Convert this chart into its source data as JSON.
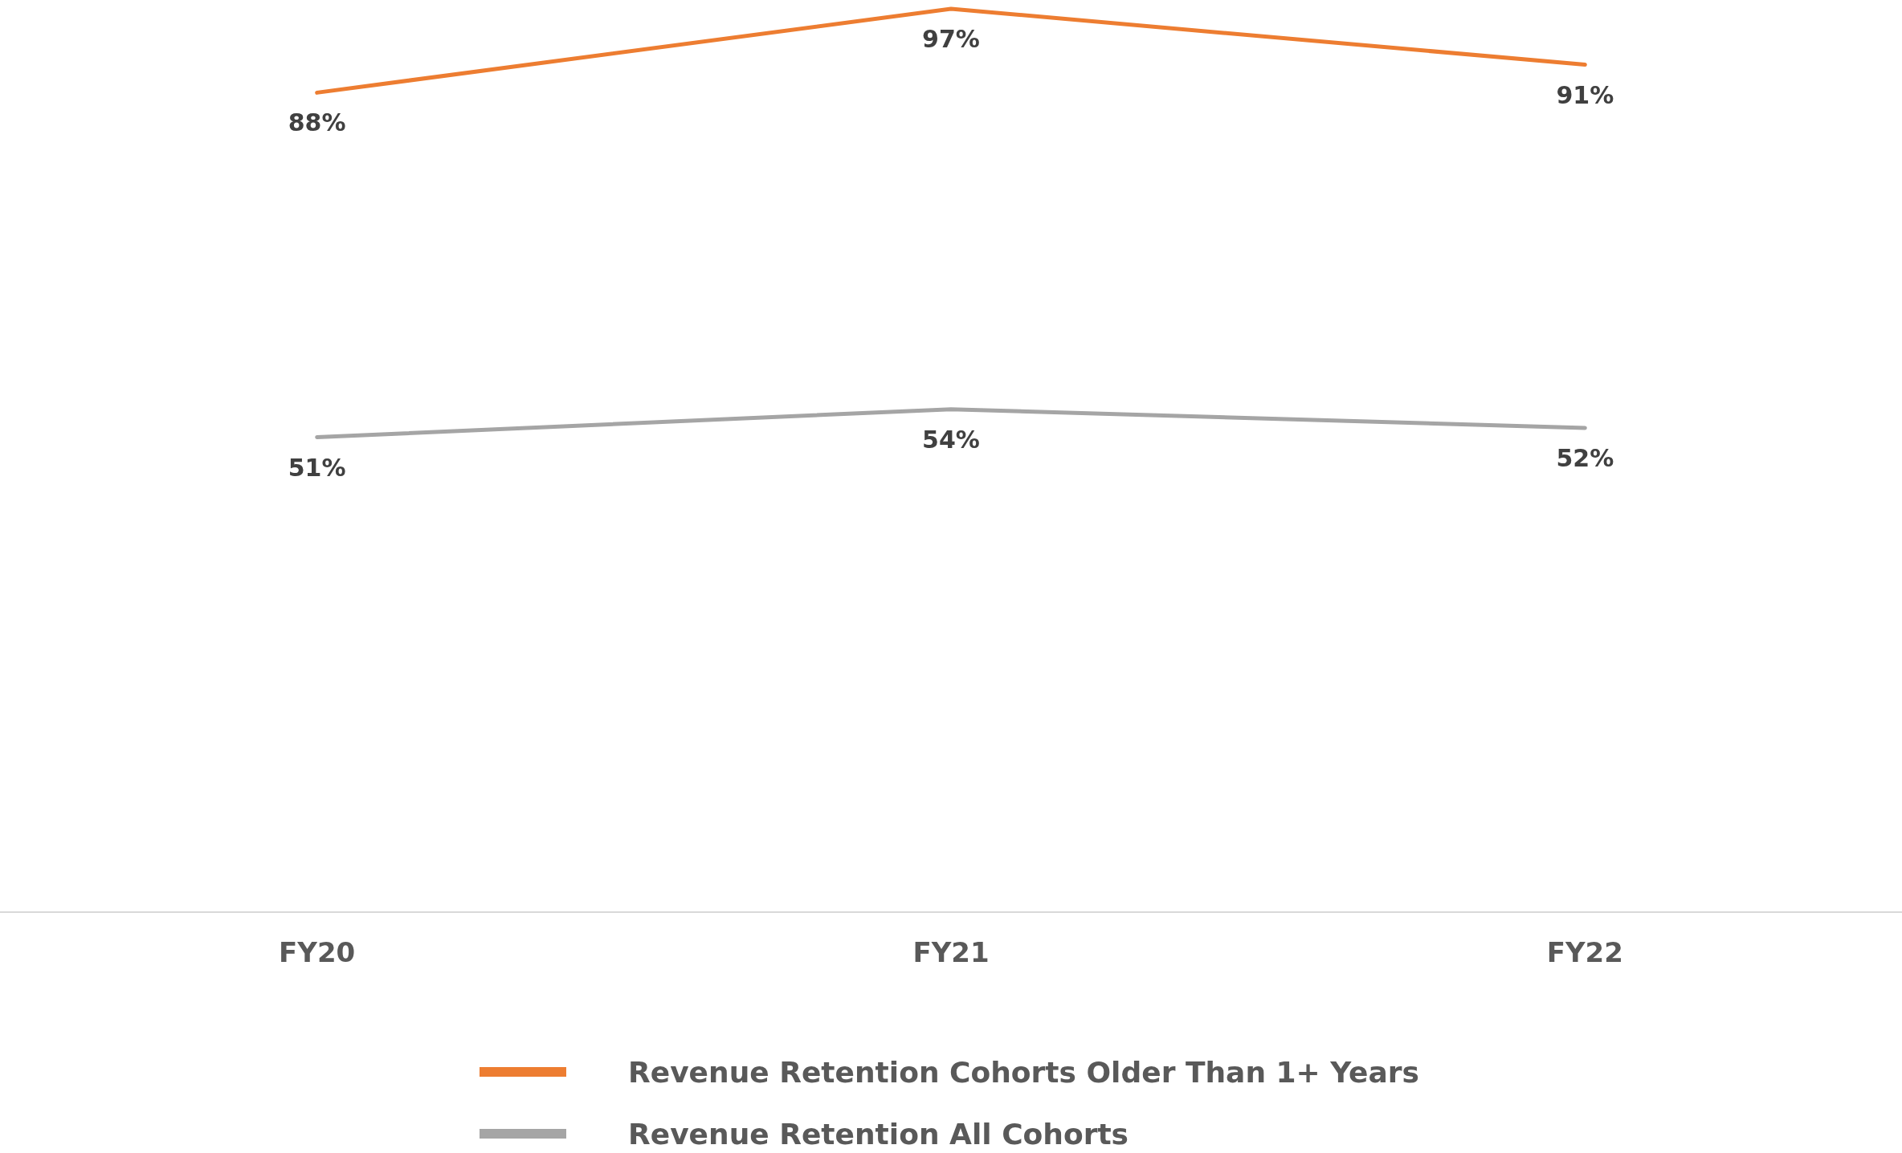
{
  "chart_data": {
    "type": "line",
    "categories": [
      "FY20",
      "FY21",
      "FY22"
    ],
    "series": [
      {
        "name": "Revenue Retention Cohorts Older Than 1+ Years",
        "color": "#ed7d31",
        "values": [
          88,
          97,
          91
        ],
        "value_labels": [
          "88%",
          "97%",
          "91%"
        ]
      },
      {
        "name": "Revenue Retention All Cohorts",
        "color": "#a5a5a5",
        "values": [
          51,
          54,
          52
        ],
        "value_labels": [
          "51%",
          "54%",
          "52%"
        ]
      }
    ],
    "tick_labels": "x",
    "legend": "bottom",
    "marker": "none",
    "line_style": "solid"
  }
}
